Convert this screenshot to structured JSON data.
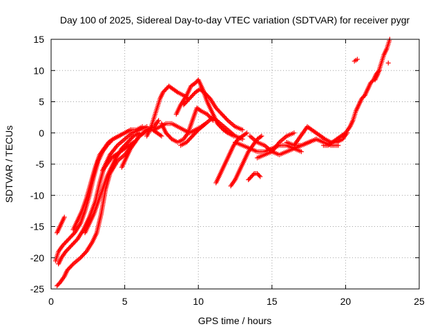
{
  "chart_data": {
    "type": "scatter",
    "title": "Day 100 of 2025, Sidereal Day-to-day VTEC variation (SDTVAR) for receiver pygr",
    "xlabel": "GPS time / hours",
    "ylabel": "SDTVAR / TECUs",
    "xlim": [
      0,
      25
    ],
    "ylim": [
      -25,
      15
    ],
    "xticks": [
      "0",
      "5",
      "10",
      "15",
      "20",
      "25"
    ],
    "yticks": [
      "-25",
      "-20",
      "-15",
      "-10",
      "-5",
      "0",
      "5",
      "10",
      "15"
    ],
    "grid": true,
    "marker": "plus",
    "color": "#ff0000",
    "series": [
      {
        "x": [
          0.4,
          0.6,
          0.9,
          1.1,
          1.5,
          2.0,
          2.4,
          2.8,
          3.1,
          3.4,
          3.7,
          4.0,
          4.5,
          5.0,
          5.5,
          6.0,
          6.5,
          7.0,
          7.3
        ],
        "y": [
          -24.5,
          -24.0,
          -23.0,
          -22.0,
          -21.0,
          -20.0,
          -19.0,
          -17.5,
          -16.0,
          -13.0,
          -9.0,
          -6.5,
          -4.5,
          -3.5,
          -2.0,
          -0.5,
          0.5,
          1.0,
          2.0
        ]
      },
      {
        "x": [
          0.5,
          0.7,
          1.0,
          1.4,
          1.8,
          2.2,
          2.6,
          3.0,
          3.3,
          3.6,
          4.0,
          4.5,
          5.0,
          5.5,
          6.0,
          6.5
        ],
        "y": [
          -21.0,
          -20.0,
          -19.0,
          -18.0,
          -17.0,
          -15.5,
          -13.5,
          -11.0,
          -8.0,
          -5.5,
          -3.5,
          -2.0,
          -1.0,
          0.0,
          0.5,
          1.0
        ]
      },
      {
        "x": [
          0.3,
          0.5,
          0.8,
          1.2,
          1.6,
          2.0,
          2.3,
          2.6,
          2.9,
          3.2,
          3.5,
          3.8,
          4.2,
          4.6,
          5.0,
          5.4
        ],
        "y": [
          -20.5,
          -19.0,
          -18.0,
          -17.0,
          -16.0,
          -14.5,
          -12.5,
          -10.0,
          -7.0,
          -4.5,
          -3.0,
          -2.0,
          -1.0,
          -0.5,
          0.0,
          0.5
        ]
      },
      {
        "x": [
          0.4,
          0.6,
          0.9
        ],
        "y": [
          -16.0,
          -15.0,
          -13.5
        ]
      },
      {
        "x": [
          1.5,
          1.8,
          2.1,
          2.4,
          2.7,
          3.0,
          3.3,
          3.6,
          3.9,
          4.2,
          4.6,
          5.0,
          5.4,
          5.8,
          6.2
        ],
        "y": [
          -15.5,
          -14.0,
          -12.5,
          -10.5,
          -8.0,
          -5.5,
          -3.5,
          -2.5,
          -1.5,
          -1.0,
          -0.5,
          0.0,
          0.5,
          0.5,
          1.0
        ]
      },
      {
        "x": [
          2.3,
          2.6,
          2.9,
          3.2,
          3.5,
          3.8,
          4.1,
          4.4,
          4.8,
          5.2,
          5.6,
          6.0
        ],
        "y": [
          -16.0,
          -14.5,
          -13.0,
          -11.0,
          -9.0,
          -7.0,
          -5.5,
          -4.0,
          -2.5,
          -1.5,
          -0.5,
          0.0
        ]
      },
      {
        "x": [
          3.5,
          3.8,
          4.1,
          4.4,
          4.7,
          5.0,
          5.3,
          5.6
        ],
        "y": [
          -6.0,
          -5.0,
          -4.0,
          -3.5,
          -3.0,
          -2.5,
          -2.0,
          -1.5
        ]
      },
      {
        "x": [
          4.8,
          5.1,
          5.4,
          5.7,
          6.0,
          6.3,
          6.6,
          6.9,
          7.2,
          7.5
        ],
        "y": [
          -5.5,
          -4.0,
          -2.5,
          -1.5,
          -0.5,
          0.0,
          0.5,
          0.5,
          0.0,
          -0.5
        ]
      },
      {
        "x": [
          6.5,
          6.8,
          7.0,
          7.2,
          7.4,
          7.6,
          7.8,
          8.0,
          8.3,
          8.6,
          9.0,
          9.3
        ],
        "y": [
          -0.5,
          1.0,
          2.5,
          4.0,
          5.5,
          6.5,
          7.0,
          7.5,
          7.0,
          6.5,
          6.0,
          5.5
        ]
      },
      {
        "x": [
          7.0,
          7.4,
          7.8,
          8.2,
          8.6,
          9.0,
          9.4,
          9.8,
          10.2,
          10.5
        ],
        "y": [
          0.5,
          1.0,
          1.5,
          1.5,
          1.0,
          0.5,
          0.0,
          0.5,
          1.0,
          1.5
        ]
      },
      {
        "x": [
          7.5,
          7.8,
          8.2,
          8.6,
          9.0,
          9.3,
          9.6,
          9.9,
          10.2,
          10.6,
          11.0
        ],
        "y": [
          1.5,
          0.0,
          -1.0,
          -1.5,
          -1.0,
          0.0,
          2.0,
          4.0,
          3.5,
          3.0,
          2.0
        ]
      },
      {
        "x": [
          8.5,
          8.8,
          9.2,
          9.5,
          9.8,
          10.0,
          10.3,
          10.6,
          11.0,
          11.3,
          11.7,
          12.0,
          12.4
        ],
        "y": [
          3.0,
          4.5,
          6.0,
          7.5,
          8.0,
          8.5,
          7.0,
          5.0,
          3.0,
          1.5,
          0.5,
          0.0,
          -0.5
        ]
      },
      {
        "x": [
          9.0,
          9.4,
          9.8,
          10.1,
          10.4,
          10.8,
          11.2,
          11.6,
          12.0,
          12.5,
          13.0
        ],
        "y": [
          4.5,
          5.5,
          6.5,
          7.0,
          6.5,
          5.5,
          4.0,
          3.0,
          2.0,
          1.0,
          0.5
        ]
      },
      {
        "x": [
          8.8,
          9.2,
          9.6,
          10.0,
          10.5,
          11.0,
          11.5,
          12.0,
          12.5,
          13.0
        ],
        "y": [
          -2.0,
          -1.5,
          -0.5,
          0.5,
          1.5,
          2.5,
          1.5,
          0.5,
          -0.5,
          -1.0
        ]
      },
      {
        "x": [
          11.2,
          11.5,
          11.8,
          12.1,
          12.4,
          12.7,
          13.0,
          13.3
        ],
        "y": [
          -8.0,
          -6.5,
          -5.0,
          -3.5,
          -2.0,
          -1.0,
          -0.5,
          0.0
        ]
      },
      {
        "x": [
          12.2,
          12.5,
          12.8,
          13.1,
          13.4,
          13.7,
          14.0,
          14.3
        ],
        "y": [
          -8.5,
          -7.5,
          -6.0,
          -4.5,
          -3.0,
          -2.0,
          -1.0,
          -0.5
        ]
      },
      {
        "x": [
          13.4,
          13.6,
          13.8,
          14.0,
          14.2
        ],
        "y": [
          -7.5,
          -7.0,
          -6.5,
          -6.5,
          -7.0
        ]
      },
      {
        "x": [
          12.5,
          13.0,
          13.5,
          14.0,
          14.5,
          15.0,
          15.5,
          16.0,
          16.5,
          17.0
        ],
        "y": [
          -1.5,
          -2.0,
          -2.5,
          -3.0,
          -3.0,
          -2.5,
          -2.0,
          -2.0,
          -2.5,
          -3.0
        ]
      },
      {
        "x": [
          13.5,
          14.0,
          14.5,
          15.0,
          15.5,
          16.0,
          16.5,
          17.0,
          17.5,
          18.0
        ],
        "y": [
          -0.5,
          -1.5,
          -2.0,
          -3.0,
          -3.5,
          -3.0,
          -2.5,
          -2.0,
          -1.5,
          -1.0
        ]
      },
      {
        "x": [
          14.0,
          14.5,
          15.0,
          15.5,
          16.0,
          16.5
        ],
        "y": [
          -4.0,
          -3.5,
          -3.0,
          -1.5,
          -0.5,
          0.0
        ]
      },
      {
        "x": [
          16.5,
          16.8,
          17.1,
          17.4,
          17.7,
          18.0,
          18.3,
          18.6,
          19.0,
          19.4,
          19.8,
          20.1
        ],
        "y": [
          -2.0,
          -1.0,
          0.0,
          1.0,
          0.5,
          0.0,
          -0.5,
          -1.0,
          -1.5,
          -1.5,
          -1.0,
          0.0
        ]
      },
      {
        "x": [
          16.0,
          16.5,
          17.0,
          17.5,
          18.0,
          18.5,
          19.0,
          19.5
        ],
        "y": [
          -1.5,
          -2.0,
          -2.0,
          -1.5,
          -1.0,
          -1.5,
          -2.0,
          -2.0
        ]
      },
      {
        "x": [
          18.5,
          18.8,
          19.1,
          19.4,
          19.7,
          20.0,
          20.3,
          20.5,
          20.7,
          20.9,
          21.1,
          21.3
        ],
        "y": [
          -2.0,
          -2.0,
          -1.5,
          -1.0,
          -0.5,
          0.0,
          1.0,
          2.0,
          3.5,
          4.5,
          5.5,
          6.0
        ]
      },
      {
        "x": [
          21.3,
          21.5,
          21.7,
          21.9,
          22.1,
          22.3
        ],
        "y": [
          6.0,
          7.0,
          8.0,
          8.5,
          9.5,
          10.0
        ]
      },
      {
        "x": [
          22.0,
          22.2,
          22.4,
          22.6,
          22.8,
          23.0
        ],
        "y": [
          8.5,
          9.5,
          11.0,
          12.5,
          13.5,
          15.0
        ]
      },
      {
        "x": [
          20.6,
          20.8
        ],
        "y": [
          11.5,
          11.8
        ]
      },
      {
        "x": [
          22.9
        ],
        "y": [
          11.2
        ]
      }
    ]
  }
}
